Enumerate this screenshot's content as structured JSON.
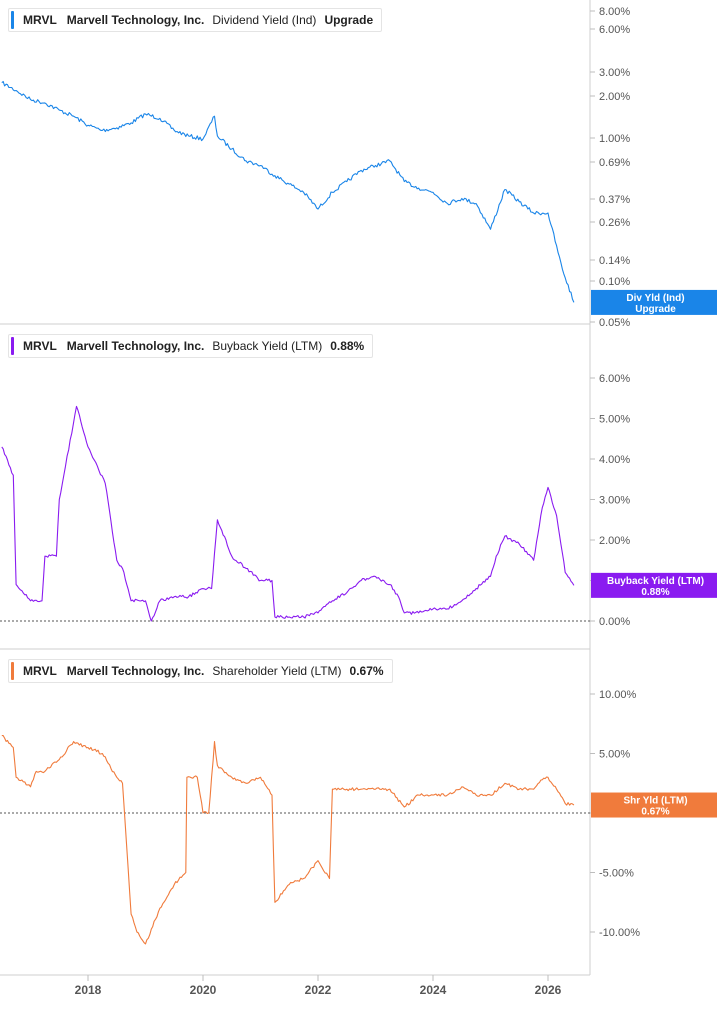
{
  "x_ticks": [
    "2018",
    "2020",
    "2022",
    "2024",
    "2026"
  ],
  "chart_data": [
    {
      "type": "line",
      "ticker": "MRVL",
      "company": "Marvell Technology, Inc.",
      "metric": "Dividend Yield (Ind)",
      "legend_value": "Upgrade",
      "color": "#1a85e8",
      "scale": "log",
      "y_ticks": [
        "8.00%",
        "6.00%",
        "3.00%",
        "2.00%",
        "1.00%",
        "0.69%",
        "0.37%",
        "0.26%",
        "0.14%",
        "0.10%",
        "0.05%"
      ],
      "last_label_line1": "Div Yld (Ind)",
      "last_label_line2": "Upgrade",
      "series": [
        {
          "x": [
            2016.5,
            2016.75,
            2017.0,
            2017.25,
            2017.5,
            2017.75,
            2018.0,
            2018.25,
            2018.5,
            2018.75,
            2019.0,
            2019.25,
            2019.5,
            2019.75,
            2020.0,
            2020.2,
            2020.25,
            2020.5,
            2020.75,
            2021.0,
            2021.25,
            2021.5,
            2021.75,
            2022.0,
            2022.25,
            2022.5,
            2022.75,
            2023.0,
            2023.25,
            2023.5,
            2023.75,
            2024.0,
            2024.25,
            2024.5,
            2024.75,
            2025.0,
            2025.25,
            2025.5,
            2025.75,
            2026.0,
            2026.25,
            2026.45
          ],
          "y": [
            2.5,
            2.2,
            1.9,
            1.8,
            1.6,
            1.45,
            1.25,
            1.15,
            1.2,
            1.3,
            1.5,
            1.4,
            1.15,
            1.05,
            1.0,
            1.45,
            1.05,
            0.85,
            0.7,
            0.65,
            0.55,
            0.48,
            0.42,
            0.32,
            0.42,
            0.5,
            0.6,
            0.65,
            0.7,
            0.5,
            0.45,
            0.42,
            0.35,
            0.38,
            0.35,
            0.23,
            0.44,
            0.36,
            0.3,
            0.3,
            0.12,
            0.07
          ]
        }
      ]
    },
    {
      "type": "line",
      "ticker": "MRVL",
      "company": "Marvell Technology, Inc.",
      "metric": "Buyback Yield (LTM)",
      "legend_value": "0.88%",
      "color": "#8a1bf0",
      "scale": "linear",
      "y_ticks": [
        "6.00%",
        "5.00%",
        "4.00%",
        "3.00%",
        "2.00%",
        "1.00%",
        "0.00%"
      ],
      "ylim": [
        0,
        6
      ],
      "zero_line": true,
      "last_label_line1": "Buyback Yield (LTM)",
      "last_label_line2": "0.88%",
      "series": [
        {
          "x": [
            2016.5,
            2016.7,
            2016.75,
            2017.0,
            2017.2,
            2017.25,
            2017.45,
            2017.5,
            2017.8,
            2018.0,
            2018.3,
            2018.5,
            2018.6,
            2018.75,
            2019.0,
            2019.1,
            2019.25,
            2019.5,
            2019.75,
            2020.0,
            2020.15,
            2020.25,
            2020.5,
            2020.75,
            2021.0,
            2021.2,
            2021.25,
            2021.5,
            2021.75,
            2022.0,
            2022.25,
            2022.5,
            2022.75,
            2023.0,
            2023.25,
            2023.4,
            2023.5,
            2023.75,
            2024.0,
            2024.25,
            2024.5,
            2024.75,
            2025.0,
            2025.1,
            2025.25,
            2025.5,
            2025.75,
            2025.9,
            2026.0,
            2026.15,
            2026.3,
            2026.45
          ],
          "y": [
            4.3,
            3.6,
            0.9,
            0.5,
            0.5,
            1.6,
            1.6,
            3.0,
            5.3,
            4.3,
            3.4,
            1.5,
            1.3,
            0.5,
            0.5,
            0.0,
            0.5,
            0.6,
            0.6,
            0.8,
            0.8,
            2.5,
            1.6,
            1.3,
            1.0,
            1.0,
            0.1,
            0.1,
            0.1,
            0.2,
            0.5,
            0.7,
            1.0,
            1.1,
            0.9,
            0.6,
            0.2,
            0.2,
            0.3,
            0.3,
            0.5,
            0.8,
            1.1,
            1.6,
            2.1,
            1.9,
            1.5,
            2.8,
            3.3,
            2.6,
            1.2,
            0.88
          ]
        }
      ]
    },
    {
      "type": "line",
      "ticker": "MRVL",
      "company": "Marvell Technology, Inc.",
      "metric": "Shareholder Yield (LTM)",
      "legend_value": "0.67%",
      "color": "#f07b3c",
      "scale": "linear",
      "y_ticks": [
        "10.00%",
        "5.00%",
        "0.00%",
        "-5.00%",
        "-10.00%"
      ],
      "ylim": [
        -10,
        10
      ],
      "zero_line": true,
      "last_label_line1": "Shr Yld (LTM)",
      "last_label_line2": "0.67%",
      "series": [
        {
          "x": [
            2016.5,
            2016.7,
            2016.75,
            2017.0,
            2017.1,
            2017.25,
            2017.5,
            2017.75,
            2018.0,
            2018.25,
            2018.5,
            2018.6,
            2018.75,
            2018.85,
            2019.0,
            2019.25,
            2019.5,
            2019.7,
            2019.72,
            2019.9,
            2020.0,
            2020.1,
            2020.2,
            2020.25,
            2020.5,
            2020.75,
            2021.0,
            2021.2,
            2021.25,
            2021.5,
            2021.75,
            2022.0,
            2022.2,
            2022.25,
            2022.5,
            2022.75,
            2023.0,
            2023.25,
            2023.5,
            2023.75,
            2024.0,
            2024.25,
            2024.5,
            2024.75,
            2025.0,
            2025.25,
            2025.5,
            2025.75,
            2025.9,
            2026.0,
            2026.15,
            2026.3,
            2026.45
          ],
          "y": [
            6.5,
            5.5,
            3.0,
            2.2,
            3.5,
            3.5,
            4.5,
            6.0,
            5.5,
            5.0,
            3.0,
            2.5,
            -8.5,
            -10.0,
            -11.0,
            -8.0,
            -6.0,
            -5.0,
            3.0,
            3.0,
            0.0,
            0.0,
            6.0,
            4.0,
            3.0,
            2.5,
            3.0,
            1.5,
            -7.5,
            -6.0,
            -5.5,
            -4.0,
            -5.5,
            2.0,
            2.0,
            2.0,
            2.0,
            2.0,
            0.5,
            1.5,
            1.5,
            1.5,
            2.2,
            1.5,
            1.5,
            2.5,
            2.0,
            2.0,
            2.8,
            3.0,
            2.0,
            0.8,
            0.67
          ]
        }
      ]
    }
  ]
}
